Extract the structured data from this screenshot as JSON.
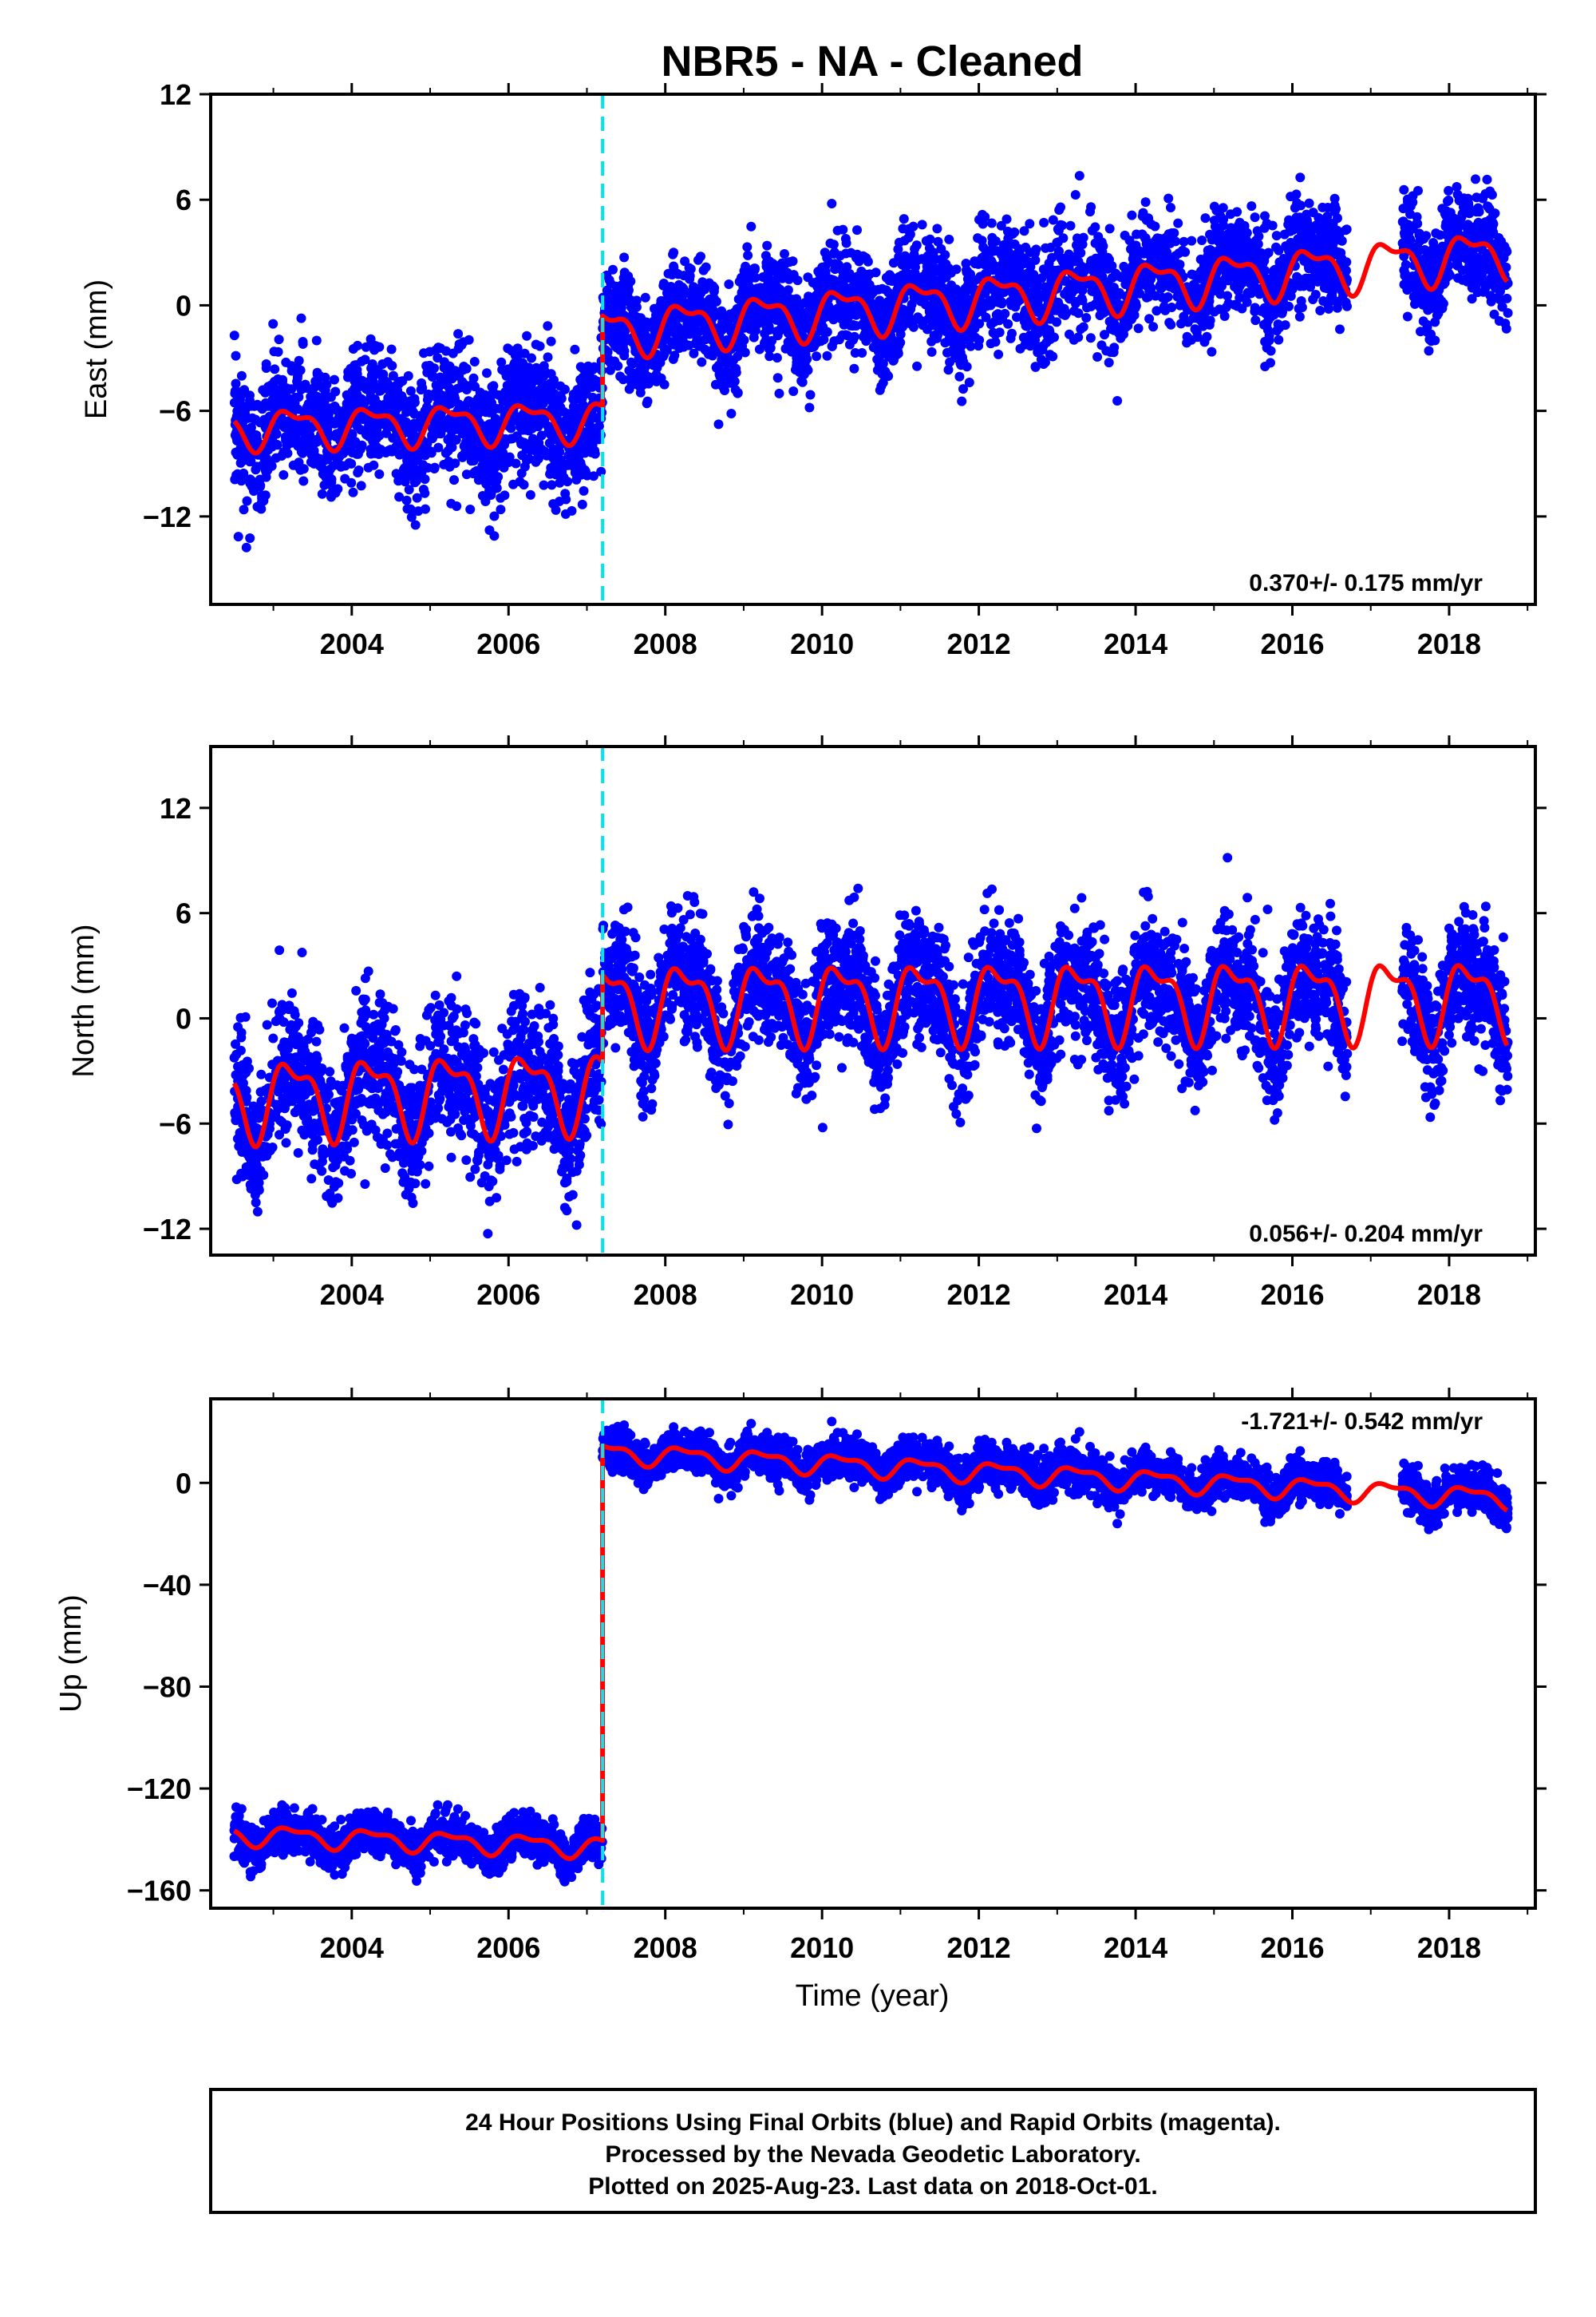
{
  "title": "NBR5  - NA - Cleaned",
  "colors": {
    "final": "#0000ff",
    "rapid": "#ff00ff",
    "model": "#ff0000",
    "offset": "#00e5ee"
  },
  "xaxis": {
    "label": "Time (year)",
    "range": [
      2002.2,
      2019.1
    ],
    "ticks": [
      2004,
      2006,
      2008,
      2010,
      2012,
      2014,
      2016,
      2018
    ]
  },
  "offset_epoch": 2007.2,
  "footer": {
    "line1": "24 Hour Positions Using Final Orbits (blue) and Rapid Orbits (magenta).",
    "line2": "Processed by the Nevada Geodetic Laboratory.",
    "line3": "Plotted on 2025-Aug-23. Last data on 2018-Oct-01."
  },
  "chart_data": [
    {
      "type": "scatter",
      "component": "east",
      "ylabel": "East (mm)",
      "ylim": [
        -17,
        12
      ],
      "yticks": [
        -12,
        -6,
        0,
        6,
        12
      ],
      "rate": "0.370+/- 0.175 mm/yr",
      "segments": [
        {
          "start": 2002.5,
          "end": 2007.2,
          "y0": -7.0,
          "y1": -6.5,
          "amp": 1.0,
          "sigma": 1.8
        },
        {
          "start": 2007.2,
          "end": 2016.7,
          "y0": -1.5,
          "y1": 2.5,
          "amp": 1.2,
          "sigma": 1.5
        },
        {
          "start": 2017.4,
          "end": 2018.75,
          "y0": 2.6,
          "y1": 3.0,
          "amp": 1.2,
          "sigma": 1.5
        }
      ],
      "model_segments": [
        {
          "start": 2002.5,
          "end": 2007.2,
          "y0": -7.0,
          "y1": -6.5,
          "amp": 1.0
        },
        {
          "start": 2007.2,
          "end": 2018.75,
          "y0": -1.5,
          "y1": 3.0,
          "amp": 1.2
        }
      ]
    },
    {
      "type": "scatter",
      "component": "north",
      "ylabel": "North (mm)",
      "ylim": [
        -13.5,
        15.5
      ],
      "yticks": [
        -12,
        -6,
        0,
        6,
        12
      ],
      "rate": "0.056+/- 0.204 mm/yr",
      "segments": [
        {
          "start": 2002.5,
          "end": 2007.2,
          "y0": -4.5,
          "y1": -4.0,
          "amp": 2.0,
          "sigma": 2.0
        },
        {
          "start": 2007.2,
          "end": 2016.7,
          "y0": 1.0,
          "y1": 1.0,
          "amp": 2.0,
          "sigma": 1.7
        },
        {
          "start": 2017.4,
          "end": 2018.75,
          "y0": 1.0,
          "y1": 1.2,
          "amp": 2.0,
          "sigma": 1.7
        }
      ],
      "model_segments": [
        {
          "start": 2002.5,
          "end": 2007.2,
          "y0": -4.5,
          "y1": -4.0,
          "amp": 2.0
        },
        {
          "start": 2007.2,
          "end": 2018.75,
          "y0": 1.0,
          "y1": 1.2,
          "amp": 2.0
        }
      ]
    },
    {
      "type": "scatter",
      "component": "up",
      "ylabel": "Up (mm)",
      "ylim": [
        -167,
        33
      ],
      "yticks": [
        -160,
        -120,
        -80,
        -40,
        0
      ],
      "rate": "-1.721+/- 0.542 mm/yr",
      "segments": [
        {
          "start": 2002.5,
          "end": 2007.2,
          "y0": -138,
          "y1": -143,
          "amp": 3.5,
          "sigma": 4.0
        },
        {
          "start": 2007.2,
          "end": 2016.7,
          "y0": 12,
          "y1": -2,
          "amp": 3.5,
          "sigma": 4.0
        },
        {
          "start": 2017.4,
          "end": 2018.75,
          "y0": -3,
          "y1": -6,
          "amp": 3.5,
          "sigma": 4.0
        }
      ],
      "model_segments": [
        {
          "start": 2002.5,
          "end": 2007.2,
          "y0": -138,
          "y1": -143,
          "amp": 3.5
        },
        {
          "start": 2007.2,
          "end": 2018.75,
          "y0": 12,
          "y1": -6,
          "amp": 3.5
        }
      ]
    }
  ]
}
